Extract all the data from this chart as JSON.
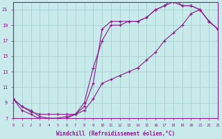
{
  "background_color": "#c8eaea",
  "grid_color": "#a8d0d0",
  "line_color": "#8b1a8b",
  "marker_color": "#8b1a8b",
  "x_min": 0,
  "x_max": 23,
  "y_min": 7,
  "y_max": 22,
  "xlabel": "Windchill (Refroidissement éolien,°C)",
  "xlabel_fontsize": 5.5,
  "yticks": [
    7,
    9,
    11,
    13,
    15,
    17,
    19,
    21
  ],
  "series": [
    {
      "x": [
        0,
        1,
        2,
        3,
        4,
        5,
        6,
        7,
        8,
        9,
        10,
        11,
        12,
        13,
        14,
        15,
        16,
        17,
        18,
        19,
        20,
        21,
        22,
        23
      ],
      "y": [
        9.5,
        8.5,
        8.0,
        7.2,
        7.0,
        7.0,
        7.2,
        7.5,
        8.5,
        11.5,
        18.5,
        19.5,
        19.5,
        19.5,
        19.5,
        20.0,
        21.0,
        21.5,
        22.5,
        21.5,
        21.5,
        21.0,
        19.5,
        18.5
      ]
    },
    {
      "x": [
        0,
        1,
        2,
        3,
        4,
        5,
        6,
        7,
        8,
        9,
        10,
        11,
        12,
        13,
        14,
        15,
        16,
        17,
        18,
        19,
        20,
        21,
        22,
        23
      ],
      "y": [
        9.5,
        8.0,
        7.5,
        6.9,
        6.8,
        6.8,
        7.0,
        7.5,
        9.0,
        13.5,
        17.0,
        19.0,
        19.0,
        19.5,
        19.5,
        20.0,
        21.0,
        21.5,
        22.0,
        21.5,
        21.5,
        21.0,
        19.5,
        18.5
      ]
    },
    {
      "x": [
        0,
        1,
        2,
        3,
        4,
        5,
        6,
        7,
        8,
        9,
        10,
        11,
        12,
        13,
        14,
        15,
        16,
        17,
        18,
        19,
        20,
        21,
        22,
        23
      ],
      "y": [
        9.5,
        8.5,
        7.8,
        7.5,
        7.5,
        7.5,
        7.5,
        7.5,
        8.0,
        9.5,
        11.5,
        12.0,
        12.5,
        13.0,
        13.5,
        14.5,
        15.5,
        17.0,
        18.0,
        19.0,
        20.5,
        21.0,
        19.5,
        18.5
      ]
    }
  ]
}
